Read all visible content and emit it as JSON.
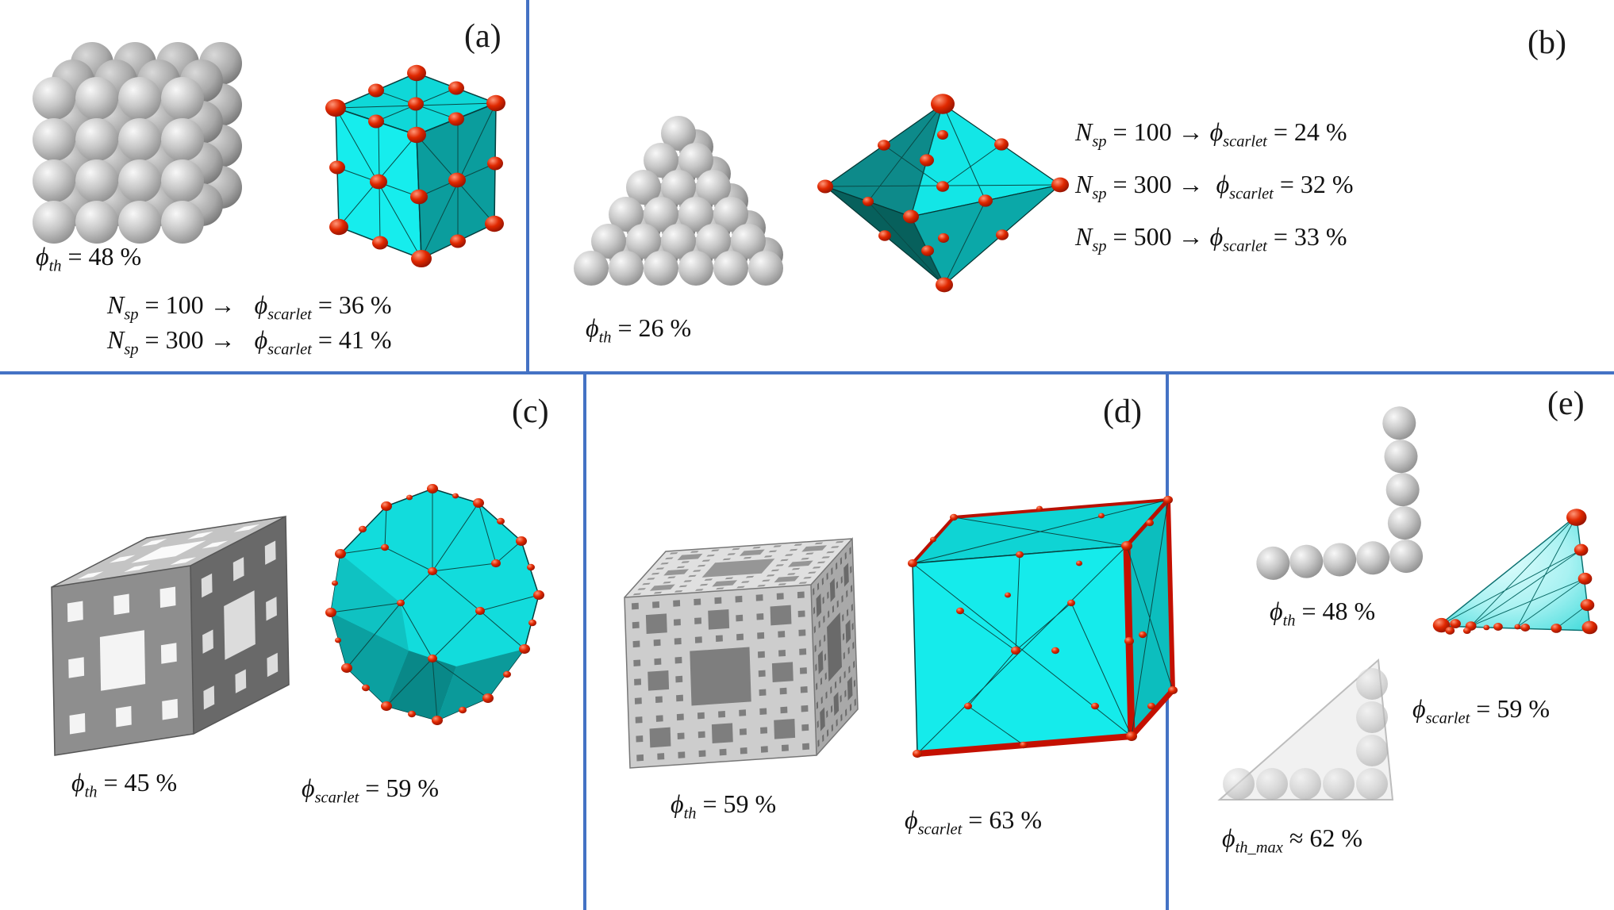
{
  "figure": {
    "colors": {
      "divider_blue": "#4472c4",
      "hull_cyan": "#14eaea",
      "hull_dark_teal": "#0a6f6f",
      "marker_red": "#c41000",
      "sphere_gray": "#c8c8c8"
    },
    "panels": {
      "a": {
        "label": "(a)",
        "phi_th": {
          "sym": "ϕ",
          "sub": "th",
          "tail": " = 48 %"
        },
        "rows": [
          {
            "sym1": "N",
            "sub1": "sp",
            "mid": " = 100 →   ",
            "sym2": "ϕ",
            "sub2": "scarlet",
            "tail": " = 36 %"
          },
          {
            "sym1": "N",
            "sub1": "sp",
            "mid": " = 300 →   ",
            "sym2": "ϕ",
            "sub2": "scarlet",
            "tail": " = 41 %"
          }
        ]
      },
      "b": {
        "label": "(b)",
        "phi_th": {
          "sym": "ϕ",
          "sub": "th",
          "tail": " = 26 %"
        },
        "rows": [
          {
            "sym1": "N",
            "sub1": "sp",
            "mid": " = 100 → ",
            "sym2": "ϕ",
            "sub2": "scarlet",
            "tail": " = 24 %"
          },
          {
            "sym1": "N",
            "sub1": "sp",
            "mid": " = 300 →  ",
            "sym2": "ϕ",
            "sub2": "scarlet",
            "tail": " = 32 %"
          },
          {
            "sym1": "N",
            "sub1": "sp",
            "mid": " = 500 → ",
            "sym2": "ϕ",
            "sub2": "scarlet",
            "tail": " = 33 %"
          }
        ]
      },
      "c": {
        "label": "(c)",
        "phi_th": {
          "sym": "ϕ",
          "sub": "th",
          "tail": " = 45 %"
        },
        "phi_scarlet": {
          "sym": "ϕ",
          "sub": "scarlet",
          "tail": " = 59 %"
        }
      },
      "d": {
        "label": "(d)",
        "phi_th": {
          "sym": "ϕ",
          "sub": "th",
          "tail": " = 59 %"
        },
        "phi_scarlet": {
          "sym": "ϕ",
          "sub": "scarlet",
          "tail": " = 63 %"
        }
      },
      "e": {
        "label": "(e)",
        "phi_th": {
          "sym": "ϕ",
          "sub": "th",
          "tail": " = 48 %"
        },
        "phi_scarlet": {
          "sym": "ϕ",
          "sub": "scarlet",
          "tail": " = 59 %"
        },
        "phi_th_max": {
          "sym": "ϕ",
          "sub": "th_max",
          "tail": " ≈ 62 %"
        }
      }
    }
  }
}
